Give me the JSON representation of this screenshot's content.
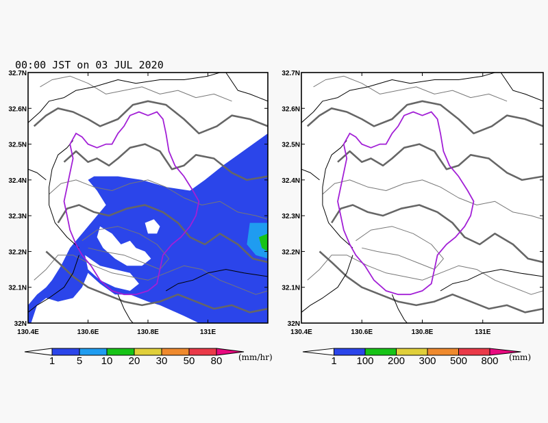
{
  "title": "00:00 JST on 03 JUL 2020",
  "chart_data": [
    {
      "type": "heatmap",
      "panel": "left",
      "quantity": "precipitation rate",
      "x_ticks": [
        "130.4E",
        "130.6E",
        "130.8E",
        "131E"
      ],
      "x_tick_values": [
        130.4,
        130.6,
        130.8,
        131.0
      ],
      "y_ticks": [
        "32N",
        "32.1N",
        "32.2N",
        "32.3N",
        "32.4N",
        "32.5N",
        "32.6N",
        "32.7N"
      ],
      "y_tick_values": [
        32.0,
        32.1,
        32.2,
        32.3,
        32.4,
        32.5,
        32.6,
        32.7
      ],
      "xlim": [
        130.4,
        131.2
      ],
      "ylim": [
        32.0,
        32.7
      ],
      "colorbar": {
        "labels": [
          "1",
          "5",
          "10",
          "20",
          "30",
          "50",
          "80"
        ],
        "unit": "(mm/hr)",
        "colors": [
          "#ffffff",
          "#2b45ea",
          "#1f9cf0",
          "#17c317",
          "#e0cf3a",
          "#ef8a2e",
          "#ea3a48",
          "#e8097f"
        ]
      },
      "rain_regions": [
        {
          "level": 1,
          "points": [
            [
              130.62,
              32.41
            ],
            [
              130.7,
              32.41
            ],
            [
              130.78,
              32.4
            ],
            [
              130.86,
              32.38
            ],
            [
              130.94,
              32.37
            ],
            [
              130.99,
              32.4
            ],
            [
              131.05,
              32.44
            ],
            [
              131.1,
              32.47
            ],
            [
              131.15,
              32.5
            ],
            [
              131.2,
              32.53
            ],
            [
              131.2,
              32.0
            ],
            [
              130.97,
              32.0
            ],
            [
              130.92,
              32.02
            ],
            [
              130.84,
              32.05
            ],
            [
              130.8,
              32.06
            ],
            [
              130.74,
              32.08
            ],
            [
              130.69,
              32.08
            ],
            [
              130.64,
              32.11
            ],
            [
              130.6,
              32.14
            ],
            [
              130.58,
              32.1
            ],
            [
              130.55,
              32.07
            ],
            [
              130.5,
              32.06
            ],
            [
              130.46,
              32.07
            ],
            [
              130.43,
              32.05
            ],
            [
              130.41,
              32.0
            ],
            [
              130.4,
              32.0
            ],
            [
              130.4,
              32.05
            ],
            [
              130.43,
              32.08
            ],
            [
              130.46,
              32.1
            ],
            [
              130.48,
              32.12
            ],
            [
              130.51,
              32.16
            ],
            [
              130.54,
              32.21
            ],
            [
              130.57,
              32.24
            ],
            [
              130.6,
              32.27
            ],
            [
              130.63,
              32.3
            ],
            [
              130.66,
              32.33
            ],
            [
              130.63,
              32.37
            ],
            [
              130.6,
              32.4
            ]
          ]
        },
        {
          "level": 2,
          "points": [
            [
              131.14,
              32.28
            ],
            [
              131.2,
              32.28
            ],
            [
              131.2,
              32.18
            ],
            [
              131.16,
              32.19
            ],
            [
              131.13,
              32.22
            ]
          ]
        },
        {
          "level": 3,
          "points": [
            [
              131.17,
              32.24
            ],
            [
              131.2,
              32.25
            ],
            [
              131.2,
              32.2
            ],
            [
              131.18,
              32.21
            ]
          ]
        },
        {
          "level": 0,
          "points": [
            [
              130.64,
              32.27
            ],
            [
              130.68,
              32.25
            ],
            [
              130.71,
              32.22
            ],
            [
              130.74,
              32.23
            ],
            [
              130.76,
              32.21
            ],
            [
              130.79,
              32.2
            ],
            [
              130.81,
              32.18
            ],
            [
              130.78,
              32.16
            ],
            [
              130.73,
              32.16
            ],
            [
              130.69,
              32.18
            ],
            [
              130.65,
              32.21
            ],
            [
              130.63,
              32.24
            ]
          ]
        },
        {
          "level": 0,
          "points": [
            [
              130.59,
              32.19
            ],
            [
              130.64,
              32.16
            ],
            [
              130.69,
              32.15
            ],
            [
              130.74,
              32.14
            ],
            [
              130.77,
              32.11
            ],
            [
              130.74,
              32.09
            ],
            [
              130.69,
              32.1
            ],
            [
              130.64,
              32.12
            ],
            [
              130.6,
              32.15
            ]
          ]
        },
        {
          "level": 0,
          "points": [
            [
              130.79,
              32.28
            ],
            [
              130.82,
              32.29
            ],
            [
              130.84,
              32.27
            ],
            [
              130.83,
              32.25
            ],
            [
              130.8,
              32.25
            ]
          ]
        },
        {
          "level": 0,
          "points": [
            [
              130.52,
              32.02
            ],
            [
              130.58,
              32.0
            ],
            [
              130.62,
              32.0
            ],
            [
              130.61,
              32.04
            ],
            [
              130.57,
              32.05
            ],
            [
              130.53,
              32.05
            ]
          ]
        }
      ]
    },
    {
      "type": "heatmap",
      "panel": "right",
      "quantity": "accumulated precipitation",
      "x_ticks": [
        "130.4E",
        "130.6E",
        "130.8E",
        "131E"
      ],
      "x_tick_values": [
        130.4,
        130.6,
        130.8,
        131.0
      ],
      "y_ticks": [
        "32N",
        "32.1N",
        "32.2N",
        "32.3N",
        "32.4N",
        "32.5N",
        "32.6N",
        "32.7N"
      ],
      "y_tick_values": [
        32.0,
        32.1,
        32.2,
        32.3,
        32.4,
        32.5,
        32.6,
        32.7
      ],
      "xlim": [
        130.4,
        131.2
      ],
      "ylim": [
        32.0,
        32.7
      ],
      "colorbar": {
        "labels": [
          "1",
          "100",
          "200",
          "300",
          "500",
          "800"
        ],
        "unit": "(mm)",
        "colors": [
          "#ffffff",
          "#2b45ea",
          "#17c317",
          "#e0cf3a",
          "#ef8a2e",
          "#ea3a48",
          "#e8097f"
        ]
      },
      "rain_regions": []
    }
  ],
  "map_layers": {
    "purple_boundary": [
      [
        130.56,
        32.53
      ],
      [
        130.58,
        32.52
      ],
      [
        130.6,
        32.5
      ],
      [
        130.63,
        32.49
      ],
      [
        130.66,
        32.5
      ],
      [
        130.68,
        32.5
      ],
      [
        130.7,
        32.53
      ],
      [
        130.72,
        32.55
      ],
      [
        130.74,
        32.58
      ],
      [
        130.77,
        32.59
      ],
      [
        130.8,
        32.58
      ],
      [
        130.83,
        32.59
      ],
      [
        130.85,
        32.57
      ],
      [
        130.86,
        32.53
      ],
      [
        130.87,
        32.48
      ],
      [
        130.89,
        32.44
      ],
      [
        130.92,
        32.41
      ],
      [
        130.95,
        32.37
      ],
      [
        130.97,
        32.34
      ],
      [
        130.96,
        32.3
      ],
      [
        130.94,
        32.27
      ],
      [
        130.91,
        32.24
      ],
      [
        130.88,
        32.22
      ],
      [
        130.85,
        32.19
      ],
      [
        130.84,
        32.15
      ],
      [
        130.83,
        32.11
      ],
      [
        130.8,
        32.09
      ],
      [
        130.76,
        32.08
      ],
      [
        130.72,
        32.08
      ],
      [
        130.68,
        32.09
      ],
      [
        130.64,
        32.12
      ],
      [
        130.61,
        32.16
      ],
      [
        130.58,
        32.19
      ],
      [
        130.56,
        32.22
      ],
      [
        130.54,
        32.26
      ],
      [
        130.53,
        32.3
      ],
      [
        130.52,
        32.34
      ],
      [
        130.53,
        32.38
      ],
      [
        130.54,
        32.42
      ],
      [
        130.55,
        32.46
      ],
      [
        130.54,
        32.5
      ]
    ],
    "coast_1": [
      [
        130.55,
        32.51
      ],
      [
        130.53,
        32.49
      ],
      [
        130.5,
        32.47
      ],
      [
        130.48,
        32.43
      ],
      [
        130.47,
        32.38
      ],
      [
        130.47,
        32.33
      ],
      [
        130.49,
        32.28
      ],
      [
        130.53,
        32.24
      ],
      [
        130.57,
        32.21
      ]
    ],
    "coast_2": [
      [
        130.57,
        32.19
      ],
      [
        130.55,
        32.14
      ],
      [
        130.52,
        32.1
      ],
      [
        130.47,
        32.07
      ],
      [
        130.43,
        32.05
      ],
      [
        130.4,
        32.03
      ]
    ],
    "coast_3": [
      [
        130.4,
        32.56
      ],
      [
        130.44,
        32.59
      ],
      [
        130.47,
        32.62
      ],
      [
        130.52,
        32.63
      ],
      [
        130.56,
        32.65
      ],
      [
        130.62,
        32.66
      ],
      [
        130.7,
        32.68
      ],
      [
        130.76,
        32.67
      ],
      [
        130.84,
        32.68
      ],
      [
        130.92,
        32.68
      ],
      [
        131.0,
        32.69
      ],
      [
        131.04,
        32.7
      ]
    ],
    "coast_4": [
      [
        131.06,
        32.7
      ],
      [
        131.1,
        32.65
      ],
      [
        131.14,
        32.64
      ],
      [
        131.2,
        32.62
      ]
    ],
    "pref_1": [
      [
        130.86,
        32.09
      ],
      [
        130.9,
        32.11
      ],
      [
        130.95,
        32.12
      ],
      [
        131.0,
        32.14
      ],
      [
        131.06,
        32.15
      ],
      [
        131.12,
        32.14
      ],
      [
        131.2,
        32.13
      ]
    ],
    "pref_2": [
      [
        130.7,
        32.08
      ],
      [
        130.72,
        32.04
      ],
      [
        130.74,
        32.01
      ],
      [
        130.75,
        32.0
      ]
    ],
    "pref_3": [
      [
        130.4,
        32.43
      ],
      [
        130.43,
        32.42
      ],
      [
        130.46,
        32.4
      ]
    ],
    "contour_thick_1": [
      [
        130.42,
        32.55
      ],
      [
        130.46,
        32.58
      ],
      [
        130.5,
        32.6
      ],
      [
        130.55,
        32.59
      ],
      [
        130.6,
        32.57
      ],
      [
        130.64,
        32.55
      ],
      [
        130.7,
        32.57
      ],
      [
        130.75,
        32.61
      ],
      [
        130.8,
        32.62
      ],
      [
        130.86,
        32.61
      ],
      [
        130.92,
        32.57
      ],
      [
        130.97,
        32.53
      ],
      [
        131.03,
        32.55
      ],
      [
        131.08,
        32.58
      ],
      [
        131.14,
        32.57
      ],
      [
        131.2,
        32.55
      ]
    ],
    "contour_thick_2": [
      [
        130.52,
        32.45
      ],
      [
        130.56,
        32.48
      ],
      [
        130.6,
        32.45
      ],
      [
        130.63,
        32.46
      ],
      [
        130.67,
        32.44
      ],
      [
        130.7,
        32.46
      ],
      [
        130.74,
        32.49
      ],
      [
        130.79,
        32.5
      ],
      [
        130.84,
        32.48
      ],
      [
        130.88,
        32.43
      ],
      [
        130.92,
        32.44
      ],
      [
        130.96,
        32.47
      ],
      [
        131.02,
        32.46
      ],
      [
        131.08,
        32.42
      ],
      [
        131.13,
        32.4
      ],
      [
        131.2,
        32.41
      ]
    ],
    "contour_thick_3": [
      [
        130.5,
        32.28
      ],
      [
        130.53,
        32.32
      ],
      [
        130.57,
        32.33
      ],
      [
        130.62,
        32.31
      ],
      [
        130.67,
        32.3
      ],
      [
        130.73,
        32.32
      ],
      [
        130.79,
        32.33
      ],
      [
        130.85,
        32.31
      ],
      [
        130.9,
        32.28
      ],
      [
        130.94,
        32.24
      ],
      [
        130.99,
        32.22
      ],
      [
        131.04,
        32.25
      ],
      [
        131.1,
        32.22
      ],
      [
        131.15,
        32.18
      ],
      [
        131.2,
        32.17
      ]
    ],
    "contour_thick_4": [
      [
        130.46,
        32.2
      ],
      [
        130.5,
        32.17
      ],
      [
        130.55,
        32.13
      ],
      [
        130.6,
        32.1
      ],
      [
        130.66,
        32.08
      ],
      [
        130.72,
        32.06
      ],
      [
        130.78,
        32.05
      ],
      [
        130.84,
        32.06
      ],
      [
        130.9,
        32.08
      ],
      [
        130.96,
        32.06
      ],
      [
        131.02,
        32.04
      ],
      [
        131.08,
        32.05
      ],
      [
        131.14,
        32.03
      ],
      [
        131.2,
        32.04
      ]
    ],
    "contour_thin_1": [
      [
        130.44,
        32.66
      ],
      [
        130.48,
        32.68
      ],
      [
        130.54,
        32.69
      ],
      [
        130.6,
        32.67
      ],
      [
        130.66,
        32.64
      ],
      [
        130.72,
        32.65
      ],
      [
        130.78,
        32.66
      ],
      [
        130.84,
        32.64
      ],
      [
        130.9,
        32.65
      ],
      [
        130.96,
        32.63
      ],
      [
        131.02,
        32.64
      ],
      [
        131.08,
        32.62
      ]
    ],
    "contour_thin_2": [
      [
        130.47,
        32.36
      ],
      [
        130.51,
        32.39
      ],
      [
        130.56,
        32.4
      ],
      [
        130.62,
        32.38
      ],
      [
        130.68,
        32.37
      ],
      [
        130.74,
        32.39
      ],
      [
        130.8,
        32.4
      ],
      [
        130.86,
        32.38
      ],
      [
        130.92,
        32.35
      ],
      [
        130.98,
        32.33
      ],
      [
        131.04,
        32.34
      ],
      [
        131.1,
        32.31
      ],
      [
        131.16,
        32.3
      ],
      [
        131.2,
        32.29
      ]
    ],
    "contour_thin_3": [
      [
        130.42,
        32.12
      ],
      [
        130.46,
        32.15
      ],
      [
        130.5,
        32.19
      ],
      [
        130.55,
        32.19
      ],
      [
        130.62,
        32.16
      ],
      [
        130.68,
        32.14
      ],
      [
        130.74,
        32.13
      ],
      [
        130.8,
        32.12
      ],
      [
        130.86,
        32.14
      ],
      [
        130.92,
        32.16
      ],
      [
        130.98,
        32.15
      ],
      [
        131.04,
        32.12
      ],
      [
        131.1,
        32.1
      ],
      [
        131.16,
        32.08
      ],
      [
        131.2,
        32.09
      ]
    ],
    "contour_thin_4": [
      [
        130.58,
        32.23
      ],
      [
        130.63,
        32.26
      ],
      [
        130.7,
        32.27
      ],
      [
        130.77,
        32.25
      ],
      [
        130.83,
        32.22
      ],
      [
        130.87,
        32.18
      ],
      [
        130.84,
        32.15
      ],
      [
        130.78,
        32.17
      ],
      [
        130.72,
        32.19
      ],
      [
        130.65,
        32.2
      ],
      [
        130.6,
        32.21
      ]
    ]
  }
}
